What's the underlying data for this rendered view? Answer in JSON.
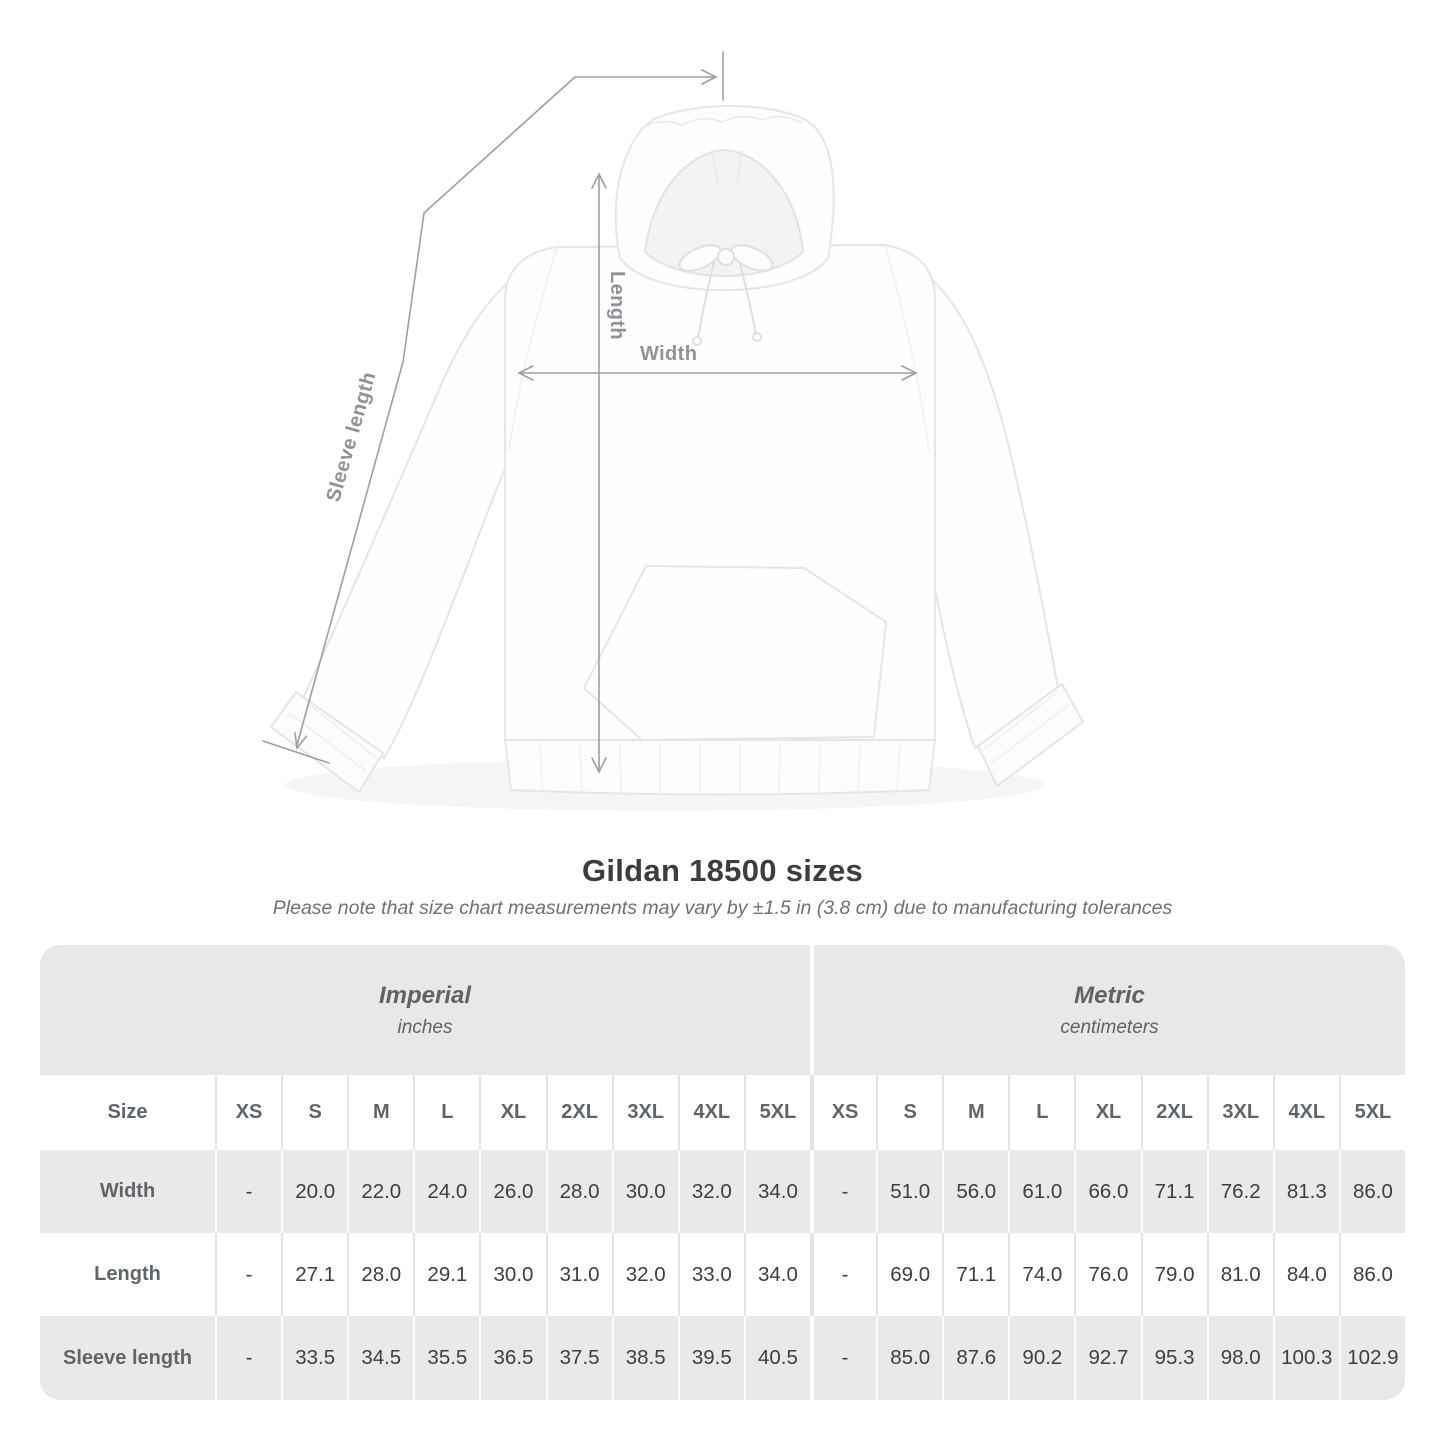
{
  "diagram": {
    "length_label": "Length",
    "width_label": "Width",
    "sleeve_label": "Sleeve length"
  },
  "title": "Gildan 18500 sizes",
  "subtitle": "Please note that size chart measurements may vary by ±1.5 in (3.8 cm) due to manufacturing tolerances",
  "chart_data": {
    "type": "table",
    "title": "Gildan 18500 sizes",
    "unit_groups": [
      {
        "label": "Imperial",
        "unit": "inches"
      },
      {
        "label": "Metric",
        "unit": "centimeters"
      }
    ],
    "corner_header": "Size",
    "sizes": [
      "XS",
      "S",
      "M",
      "L",
      "XL",
      "2XL",
      "3XL",
      "4XL",
      "5XL"
    ],
    "rows": [
      {
        "label": "Width",
        "imperial": [
          "-",
          "20.0",
          "22.0",
          "24.0",
          "26.0",
          "28.0",
          "30.0",
          "32.0",
          "34.0"
        ],
        "metric": [
          "-",
          "51.0",
          "56.0",
          "61.0",
          "66.0",
          "71.1",
          "76.2",
          "81.3",
          "86.0"
        ]
      },
      {
        "label": "Length",
        "imperial": [
          "-",
          "27.1",
          "28.0",
          "29.1",
          "30.0",
          "31.0",
          "32.0",
          "33.0",
          "34.0"
        ],
        "metric": [
          "-",
          "69.0",
          "71.1",
          "74.0",
          "76.0",
          "79.0",
          "81.0",
          "84.0",
          "86.0"
        ]
      },
      {
        "label": "Sleeve length",
        "imperial": [
          "-",
          "33.5",
          "34.5",
          "35.5",
          "36.5",
          "37.5",
          "38.5",
          "39.5",
          "40.5"
        ],
        "metric": [
          "-",
          "85.0",
          "87.6",
          "90.2",
          "92.7",
          "95.3",
          "98.0",
          "100.3",
          "102.9"
        ]
      }
    ]
  },
  "colors": {
    "band_bg": "#e8e8e7",
    "row_alt_bg": "#e9e9e9",
    "header_text": "#5f666b",
    "value_text": "#3b4043",
    "measure_line": "#9aa0a6",
    "title_text": "#3a3e41",
    "subtitle_text": "#6c7276"
  }
}
